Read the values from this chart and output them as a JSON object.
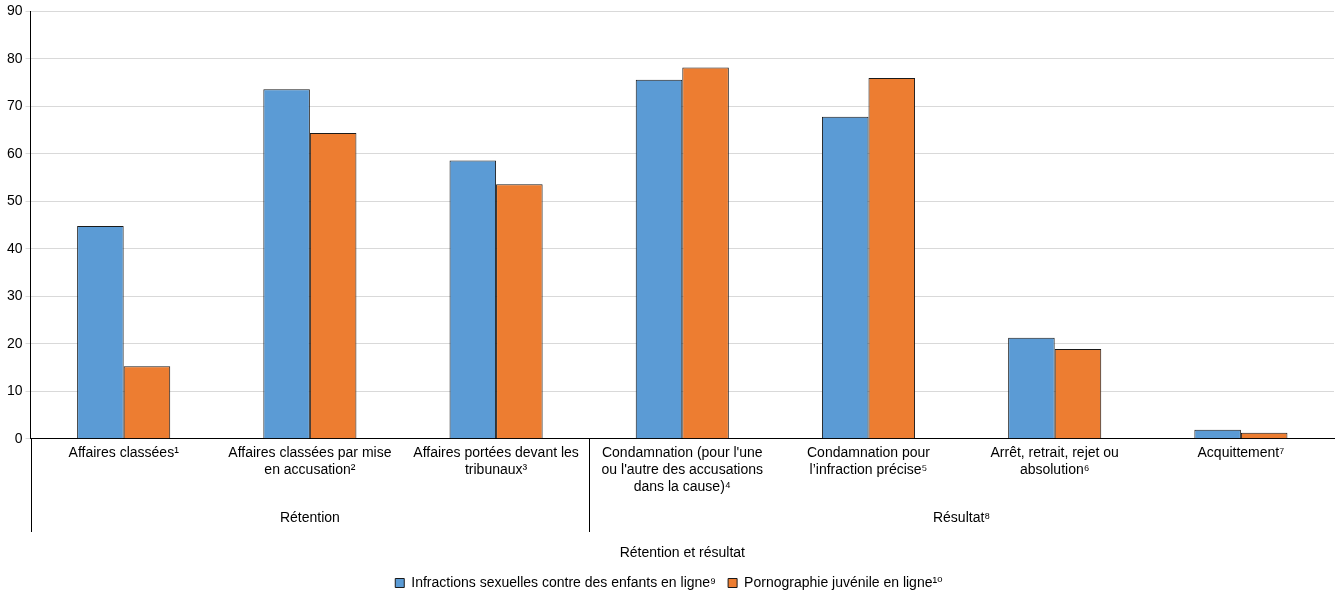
{
  "chart_data": {
    "type": "bar",
    "categories": [
      "Affaires classées¹",
      "Affaires classées par mise en accusation²",
      "Affaires portées devant les tribunaux³",
      "Condamnation (pour l'une ou l'autre des accusations dans la cause)⁴",
      "Condamnation pour l’infraction précise⁵",
      "Arrêt, retrait, rejet ou absolution⁶",
      "Acquittement⁷"
    ],
    "series": [
      {
        "name": "Infractions sexuelles contre des enfants en ligne⁹",
        "color": "#5b9bd5",
        "values": [
          44.8,
          73.6,
          58.6,
          75.6,
          67.8,
          21.3,
          1.9
        ]
      },
      {
        "name": "Pornographie juvénile en ligne¹⁰",
        "color": "#ed7d31",
        "values": [
          15.3,
          64.4,
          53.6,
          78.2,
          76.0,
          18.9,
          1.3
        ]
      }
    ],
    "xlabel": "Rétention et résultat",
    "annotations": [
      "Rétention",
      "Résultat⁸"
    ],
    "ylim": [
      0,
      90
    ],
    "yticks": [
      0,
      10,
      20,
      30,
      40,
      50,
      60,
      70,
      80,
      90
    ],
    "grid": "y",
    "legend": "bottom"
  }
}
